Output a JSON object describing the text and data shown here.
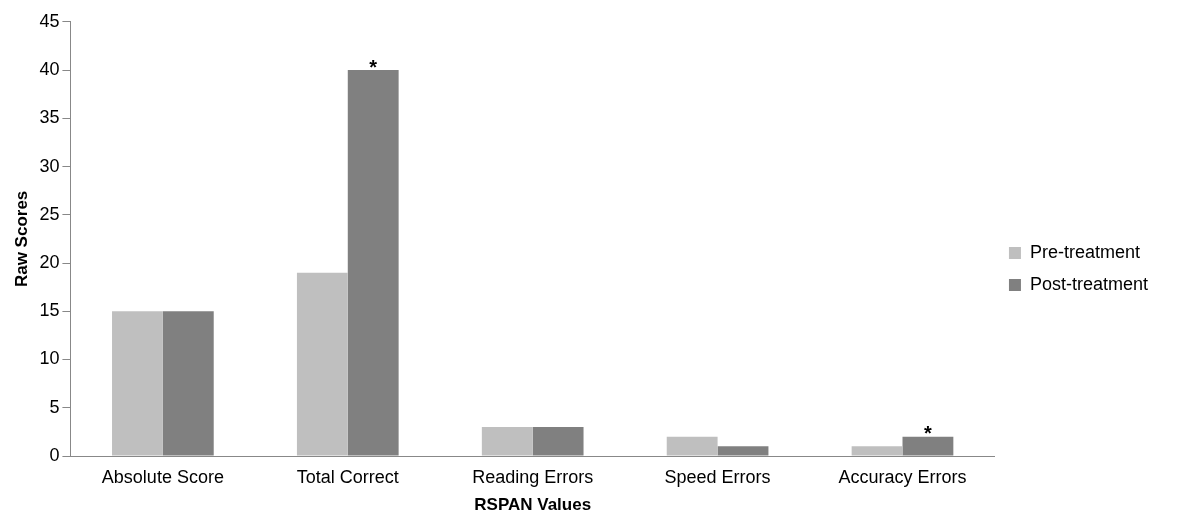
{
  "chart_data": {
    "type": "bar",
    "xlabel": "RSPAN Values",
    "ylabel": "Raw Scores",
    "categories": [
      "Absolute Score",
      "Total Correct",
      "Reading Errors",
      "Speed Errors",
      "Accuracy Errors"
    ],
    "series": [
      {
        "name": "Pre-treatment",
        "color": "#bfbfbf",
        "values": [
          15,
          19,
          3,
          2,
          1
        ]
      },
      {
        "name": "Post-treatment",
        "color": "#808080",
        "values": [
          15,
          40,
          3,
          1,
          2
        ]
      }
    ],
    "ylim": [
      0,
      45
    ],
    "yticks": [
      0,
      5,
      10,
      15,
      20,
      25,
      30,
      35,
      40,
      45
    ],
    "grid": false,
    "legend": "right",
    "annotations": [
      {
        "text": "*",
        "x": "Total Correct",
        "y": 40
      },
      {
        "text": "*",
        "x": "Accuracy Errors",
        "y": 2
      }
    ]
  }
}
